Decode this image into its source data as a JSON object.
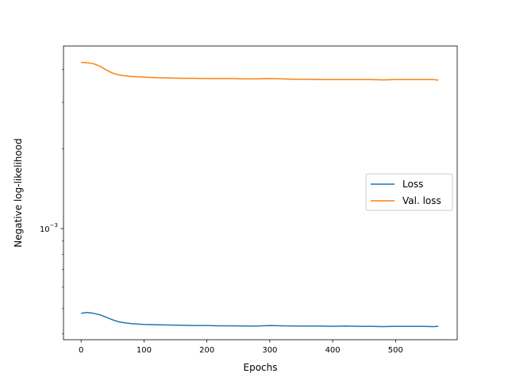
{
  "chart_data": {
    "type": "line",
    "title": "",
    "xlabel": "Epochs",
    "ylabel": "Negative log-likelihood",
    "xlim": [
      -28,
      598
    ],
    "x_ticks": [
      0,
      100,
      200,
      300,
      400,
      500
    ],
    "yscale": "log",
    "ylim": [
      0.00038,
      0.0049
    ],
    "y_ticks": [
      {
        "value": 0.001,
        "base": "10",
        "exponent": "−3"
      }
    ],
    "grid": false,
    "legend_position": "center-right",
    "x": [
      0,
      10,
      20,
      30,
      40,
      50,
      60,
      70,
      80,
      100,
      120,
      140,
      160,
      180,
      200,
      220,
      240,
      260,
      280,
      300,
      320,
      340,
      360,
      380,
      400,
      420,
      440,
      460,
      480,
      500,
      520,
      540,
      560,
      568
    ],
    "series": [
      {
        "name": "Loss",
        "color": "#1f77b4",
        "values": [
          0.000478,
          0.000482,
          0.000478,
          0.000472,
          0.000462,
          0.000452,
          0.000444,
          0.00044,
          0.000437,
          0.000434,
          0.000433,
          0.000432,
          0.000431,
          0.00043,
          0.00043,
          0.000429,
          0.000429,
          0.000428,
          0.000428,
          0.00043,
          0.000429,
          0.000428,
          0.000428,
          0.000428,
          0.000427,
          0.000428,
          0.000427,
          0.000427,
          0.000426,
          0.000427,
          0.000427,
          0.000427,
          0.000426,
          0.000427
        ]
      },
      {
        "name": "Val. loss",
        "color": "#ff7f0e",
        "values": [
          0.00425,
          0.00424,
          0.0042,
          0.00411,
          0.00398,
          0.00387,
          0.00381,
          0.00378,
          0.00376,
          0.00374,
          0.00372,
          0.00371,
          0.0037,
          0.0037,
          0.00369,
          0.00369,
          0.00369,
          0.00368,
          0.00368,
          0.00369,
          0.00368,
          0.00367,
          0.00367,
          0.00366,
          0.00366,
          0.00366,
          0.00366,
          0.00366,
          0.00365,
          0.00366,
          0.00366,
          0.00366,
          0.00366,
          0.00364
        ]
      }
    ]
  }
}
